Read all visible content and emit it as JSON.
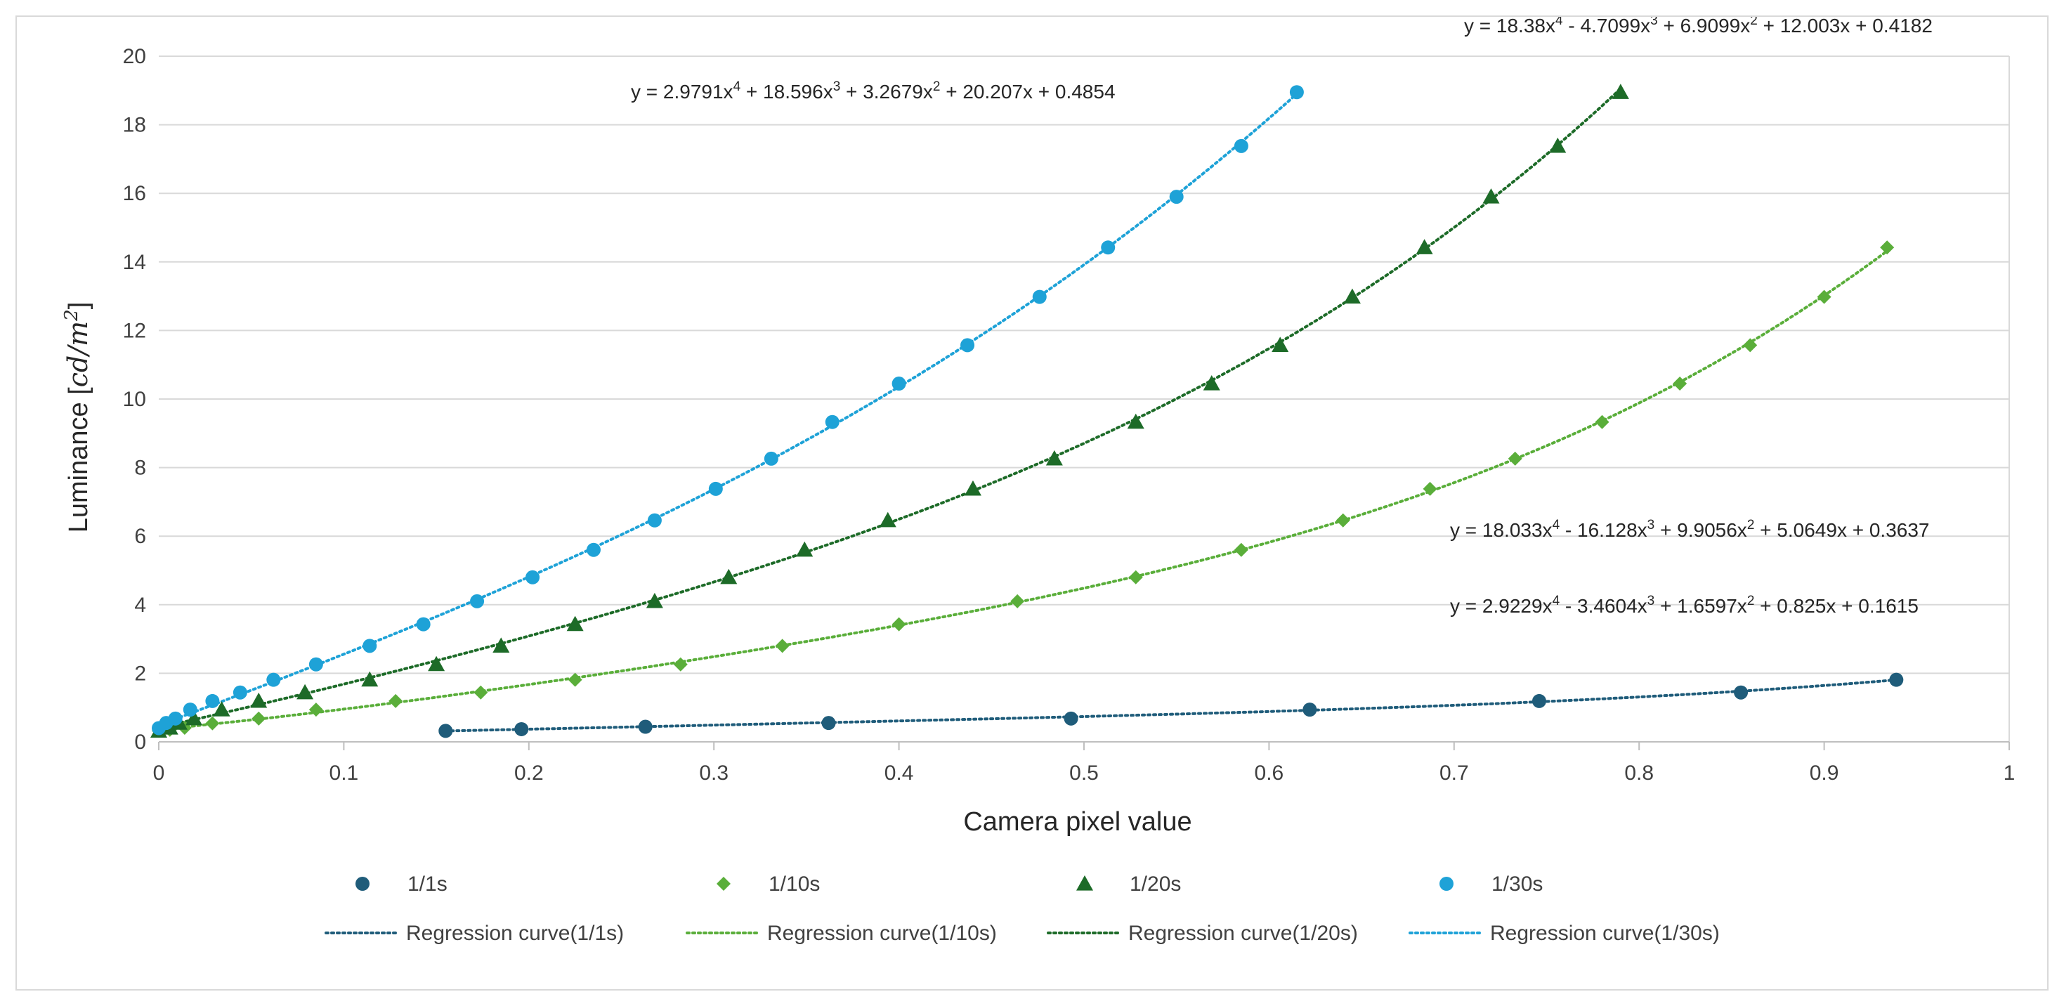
{
  "chart_data": {
    "type": "scatter",
    "xlabel": "Camera pixel value",
    "ylabel": {
      "prefix": "Luminance [",
      "unit_base": "cd/m",
      "unit_sup": "2",
      "suffix": "]"
    },
    "xlim": [
      0,
      1
    ],
    "ylim": [
      0,
      20
    ],
    "x_ticks": [
      "0",
      "0.1",
      "0.2",
      "0.3",
      "0.4",
      "0.5",
      "0.6",
      "0.7",
      "0.8",
      "0.9",
      "1"
    ],
    "y_ticks": [
      "0",
      "2",
      "4",
      "6",
      "8",
      "10",
      "12",
      "14",
      "16",
      "18",
      "20"
    ],
    "grid": "horizontal",
    "series": [
      {
        "name": "1/1s",
        "marker": "circle",
        "color": "#1f5c7a",
        "points": [
          [
            0.155,
            0.32
          ],
          [
            0.196,
            0.37
          ],
          [
            0.263,
            0.44
          ],
          [
            0.362,
            0.55
          ],
          [
            0.493,
            0.68
          ],
          [
            0.622,
            0.94
          ],
          [
            0.746,
            1.19
          ],
          [
            0.855,
            1.44
          ],
          [
            0.939,
            1.81
          ]
        ],
        "regression": {
          "name": "Regression curve(1/1s)",
          "coeffs": [
            2.9229,
            -3.4604,
            1.6597,
            0.825,
            0.1615
          ],
          "x_range": [
            0.155,
            0.939
          ],
          "equation": {
            "y_prefix": "y = ",
            "a4": "2.9229",
            "s3": " - ",
            "a3": "3.4604",
            "s2": " + ",
            "a2": "1.6597",
            "s1": " + ",
            "a1": "0.825",
            "s0": " + ",
            "a0": "0.1615"
          }
        }
      },
      {
        "name": "1/10s",
        "marker": "diamond",
        "color": "#5aae3a",
        "points": [
          [
            0.0,
            0.32
          ],
          [
            0.006,
            0.35
          ],
          [
            0.014,
            0.41
          ],
          [
            0.029,
            0.54
          ],
          [
            0.054,
            0.68
          ],
          [
            0.085,
            0.94
          ],
          [
            0.128,
            1.19
          ],
          [
            0.174,
            1.44
          ],
          [
            0.225,
            1.81
          ],
          [
            0.282,
            2.26
          ],
          [
            0.337,
            2.8
          ],
          [
            0.4,
            3.43
          ],
          [
            0.464,
            4.1
          ],
          [
            0.528,
            4.8
          ],
          [
            0.585,
            5.6
          ],
          [
            0.64,
            6.46
          ],
          [
            0.687,
            7.38
          ],
          [
            0.733,
            8.26
          ],
          [
            0.78,
            9.33
          ],
          [
            0.822,
            10.45
          ],
          [
            0.86,
            11.57
          ],
          [
            0.9,
            12.98
          ],
          [
            0.934,
            14.42
          ]
        ],
        "regression": {
          "name": "Regression curve(1/10s)",
          "coeffs": [
            18.033,
            -16.128,
            9.9056,
            5.0649,
            0.3637
          ],
          "x_range": [
            0.0,
            0.934
          ],
          "equation": {
            "y_prefix": "y = ",
            "a4": "18.033",
            "s3": " - ",
            "a3": "16.128",
            "s2": " + ",
            "a2": "9.9056",
            "s1": " + ",
            "a1": "5.0649",
            "s0": " + ",
            "a0": "0.3637"
          }
        }
      },
      {
        "name": "1/20s",
        "marker": "triangle",
        "color": "#1d6b28",
        "points": [
          [
            0.0,
            0.32
          ],
          [
            0.006,
            0.41
          ],
          [
            0.011,
            0.55
          ],
          [
            0.019,
            0.68
          ],
          [
            0.034,
            0.94
          ],
          [
            0.054,
            1.19
          ],
          [
            0.079,
            1.44
          ],
          [
            0.114,
            1.81
          ],
          [
            0.15,
            2.26
          ],
          [
            0.185,
            2.8
          ],
          [
            0.225,
            3.43
          ],
          [
            0.268,
            4.1
          ],
          [
            0.308,
            4.8
          ],
          [
            0.349,
            5.6
          ],
          [
            0.394,
            6.46
          ],
          [
            0.44,
            7.38
          ],
          [
            0.484,
            8.26
          ],
          [
            0.528,
            9.33
          ],
          [
            0.569,
            10.45
          ],
          [
            0.606,
            11.57
          ],
          [
            0.645,
            12.98
          ],
          [
            0.684,
            14.42
          ],
          [
            0.72,
            15.9
          ],
          [
            0.756,
            17.38
          ],
          [
            0.79,
            18.95
          ]
        ],
        "regression": {
          "name": "Regression curve(1/20s)",
          "coeffs": [
            18.38,
            -4.7099,
            6.9099,
            12.003,
            0.4182
          ],
          "x_range": [
            0.0,
            0.79
          ],
          "equation": {
            "y_prefix": "y = ",
            "a4": "18.38",
            "s3": " - ",
            "a3": "4.7099",
            "s2": " + ",
            "a2": "6.9099",
            "s1": " + ",
            "a1": "12.003",
            "s0": " + ",
            "a0": "0.4182"
          }
        }
      },
      {
        "name": "1/30s",
        "marker": "circle",
        "color": "#1ea2d7",
        "points": [
          [
            0.0,
            0.4
          ],
          [
            0.004,
            0.55
          ],
          [
            0.009,
            0.68
          ],
          [
            0.017,
            0.94
          ],
          [
            0.029,
            1.19
          ],
          [
            0.044,
            1.44
          ],
          [
            0.062,
            1.81
          ],
          [
            0.085,
            2.26
          ],
          [
            0.114,
            2.8
          ],
          [
            0.143,
            3.43
          ],
          [
            0.172,
            4.1
          ],
          [
            0.202,
            4.8
          ],
          [
            0.235,
            5.6
          ],
          [
            0.268,
            6.46
          ],
          [
            0.301,
            7.38
          ],
          [
            0.331,
            8.26
          ],
          [
            0.364,
            9.33
          ],
          [
            0.4,
            10.45
          ],
          [
            0.437,
            11.57
          ],
          [
            0.476,
            12.98
          ],
          [
            0.513,
            14.42
          ],
          [
            0.55,
            15.9
          ],
          [
            0.585,
            17.38
          ],
          [
            0.615,
            18.95
          ]
        ],
        "regression": {
          "name": "Regression curve(1/30s)",
          "coeffs": [
            2.9791,
            18.596,
            3.2679,
            20.207,
            0.4854
          ],
          "x_range": [
            0.0,
            0.615
          ],
          "equation": {
            "y_prefix": "y = ",
            "a4": "2.9791",
            "s3": " + ",
            "a3": "18.596",
            "s2": " + ",
            "a2": "3.2679",
            "s1": " + ",
            "a1": "20.207",
            "s0": " + ",
            "a0": "0.4854"
          }
        }
      }
    ],
    "legend_placement": "bottom"
  }
}
